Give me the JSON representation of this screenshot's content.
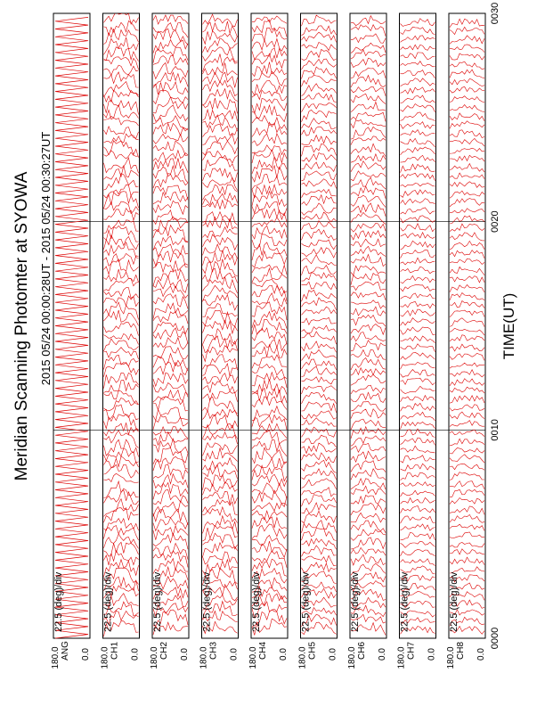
{
  "chart_data": {
    "type": "line",
    "title": "Meridian Scanning Photomter at SYOWA",
    "subtitle": "2015 05/24 00:00:28UT - 2015 05/24 00:30:27UT",
    "xlabel": "TIME(UT)",
    "x_ticks": [
      "0000",
      "0010",
      "0020",
      "0030"
    ],
    "xlim": [
      "0000",
      "0030"
    ],
    "grid": true,
    "color": "#dd0000",
    "panels": [
      {
        "name": "ANG",
        "scale": "22.5 (deg)/div",
        "y_ticks": [
          "180.0",
          "0.0"
        ],
        "ylim": [
          0,
          180
        ]
      },
      {
        "name": "CH1",
        "scale": "22.5 (deg)/div",
        "y_ticks": [
          "180.0",
          "0.0"
        ],
        "ylim": [
          0,
          180
        ]
      },
      {
        "name": "CH2",
        "scale": "22.5 (deg)/div",
        "y_ticks": [
          "180.0",
          "0.0"
        ],
        "ylim": [
          0,
          180
        ]
      },
      {
        "name": "CH3",
        "scale": "22.5 (deg)/div",
        "y_ticks": [
          "180.0",
          "0.0"
        ],
        "ylim": [
          0,
          180
        ]
      },
      {
        "name": "CH4",
        "scale": "22.5 (deg)/div",
        "y_ticks": [
          "180.0",
          "0.0"
        ],
        "ylim": [
          0,
          180
        ]
      },
      {
        "name": "CH5",
        "scale": "22.5 (deg)/div",
        "y_ticks": [
          "180.0",
          "0.0"
        ],
        "ylim": [
          0,
          180
        ]
      },
      {
        "name": "CH6",
        "scale": "22.5 (deg)/div",
        "y_ticks": [
          "180.0",
          "0.0"
        ],
        "ylim": [
          0,
          180
        ]
      },
      {
        "name": "CH7",
        "scale": "22.5 (deg)/div",
        "y_ticks": [
          "180.0",
          "0.0"
        ],
        "ylim": [
          0,
          180
        ]
      },
      {
        "name": "CH8",
        "scale": "22.5 (deg)/div",
        "y_ticks": [
          "180.0",
          "0.0"
        ],
        "ylim": [
          0,
          180
        ]
      }
    ]
  }
}
